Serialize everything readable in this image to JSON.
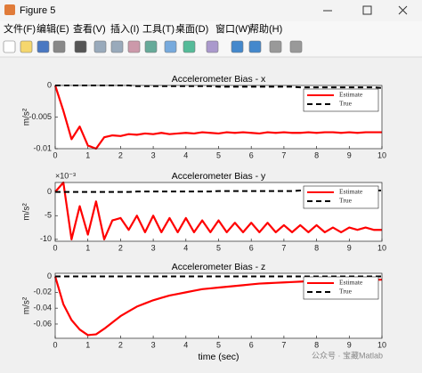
{
  "window": {
    "title": "Figure 5",
    "menu": [
      "文件(F)",
      "编辑(E)",
      "查看(V)",
      "插入(I)",
      "工具(T)",
      "桌面(D)",
      "窗口(W)",
      "帮助(H)"
    ]
  },
  "watermark": "公众号 · 宝藏Matlab",
  "chart_data": [
    {
      "type": "line",
      "title": "Accelerometer Bias - x",
      "ylabel": "m/s²",
      "x": [
        0,
        0.25,
        0.5,
        0.75,
        1,
        1.25,
        1.5,
        1.75,
        2,
        2.25,
        2.5,
        2.75,
        3,
        3.25,
        3.5,
        3.75,
        4,
        4.25,
        4.5,
        4.75,
        5,
        5.25,
        5.5,
        5.75,
        6,
        6.25,
        6.5,
        6.75,
        7,
        7.25,
        7.5,
        7.75,
        8,
        8.25,
        8.5,
        8.75,
        9,
        9.25,
        9.5,
        9.75,
        10
      ],
      "xlim": [
        0,
        10
      ],
      "xticks": [
        0,
        1,
        2,
        3,
        4,
        5,
        6,
        7,
        8,
        9,
        10
      ],
      "ylim": [
        -0.01,
        0
      ],
      "yticks": [
        -0.01,
        -0.005,
        0
      ],
      "legend": "upper right",
      "series": [
        {
          "name": "Estimate",
          "color": "#ff0000",
          "style": "solid",
          "values": [
            0,
            -0.004,
            -0.0085,
            -0.0065,
            -0.0095,
            -0.01,
            -0.0082,
            -0.0079,
            -0.008,
            -0.0077,
            -0.0078,
            -0.0076,
            -0.0077,
            -0.0075,
            -0.0077,
            -0.0076,
            -0.0075,
            -0.0076,
            -0.0074,
            -0.0075,
            -0.0076,
            -0.0074,
            -0.0075,
            -0.0074,
            -0.0075,
            -0.0076,
            -0.0074,
            -0.0075,
            -0.0074,
            -0.0075,
            -0.0075,
            -0.0074,
            -0.0075,
            -0.0074,
            -0.0074,
            -0.0075,
            -0.0074,
            -0.0075,
            -0.0074,
            -0.0074,
            -0.0074
          ]
        },
        {
          "name": "True",
          "color": "#000000",
          "style": "dashed",
          "values": [
            0,
            0,
            0,
            0,
            0,
            0,
            0,
            0,
            0,
            0,
            -0.0001,
            -0.0001,
            -0.0001,
            -0.0001,
            -0.0001,
            -0.0001,
            -0.0001,
            -0.0001,
            -0.0001,
            -0.0001,
            -0.0002,
            -0.0002,
            -0.0002,
            -0.0002,
            -0.0002,
            -0.0002,
            -0.0002,
            -0.0002,
            -0.0002,
            -0.0002,
            -0.0003,
            -0.0003,
            -0.0003,
            -0.0003,
            -0.0003,
            -0.0003,
            -0.0003,
            -0.0003,
            -0.0003,
            -0.0003,
            -0.0004
          ]
        }
      ]
    },
    {
      "type": "line",
      "title": "Accelerometer Bias - y",
      "ylabel": "m/s²",
      "yexponent": "×10⁻³",
      "x": [
        0,
        0.25,
        0.5,
        0.75,
        1,
        1.25,
        1.5,
        1.75,
        2,
        2.25,
        2.5,
        2.75,
        3,
        3.25,
        3.5,
        3.75,
        4,
        4.25,
        4.5,
        4.75,
        5,
        5.25,
        5.5,
        5.75,
        6,
        6.25,
        6.5,
        6.75,
        7,
        7.25,
        7.5,
        7.75,
        8,
        8.25,
        8.5,
        8.75,
        9,
        9.25,
        9.5,
        9.75,
        10
      ],
      "xlim": [
        0,
        10
      ],
      "xticks": [
        0,
        1,
        2,
        3,
        4,
        5,
        6,
        7,
        8,
        9,
        10
      ],
      "ylim": [
        -10.4,
        2
      ],
      "yticks": [
        -10,
        -5,
        0
      ],
      "legend": "upper right",
      "series": [
        {
          "name": "Estimate",
          "color": "#ff0000",
          "style": "solid",
          "values": [
            0,
            2,
            -10,
            -3,
            -9,
            -2,
            -10,
            -6,
            -5.5,
            -8,
            -5,
            -8.5,
            -5,
            -8.5,
            -5.5,
            -8.5,
            -5.5,
            -8.5,
            -6,
            -8.5,
            -6,
            -8.5,
            -6.5,
            -8.5,
            -6.5,
            -8.5,
            -6.5,
            -8.5,
            -7,
            -8.5,
            -7,
            -8.5,
            -7,
            -8.5,
            -7.5,
            -8.5,
            -7.5,
            -8,
            -7.5,
            -8,
            -8
          ]
        },
        {
          "name": "True",
          "color": "#000000",
          "style": "dashed",
          "values": [
            0,
            0,
            0,
            0,
            0,
            0,
            0,
            0,
            0,
            0,
            0.1,
            0.1,
            0.1,
            0.1,
            0.1,
            0.1,
            0.1,
            0.1,
            0.1,
            0.1,
            0.2,
            0.2,
            0.2,
            0.2,
            0.2,
            0.2,
            0.2,
            0.2,
            0.2,
            0.2,
            0.3,
            0.3,
            0.3,
            0.3,
            0.3,
            0.3,
            0.3,
            0.3,
            0.3,
            0.3,
            0.3
          ]
        }
      ]
    },
    {
      "type": "line",
      "title": "Accelerometer Bias - z",
      "ylabel": "m/s²",
      "xlabel": "time (sec)",
      "x": [
        0,
        0.25,
        0.5,
        0.75,
        1,
        1.25,
        1.5,
        1.75,
        2,
        2.25,
        2.5,
        2.75,
        3,
        3.25,
        3.5,
        3.75,
        4,
        4.25,
        4.5,
        4.75,
        5,
        5.25,
        5.5,
        5.75,
        6,
        6.25,
        6.5,
        6.75,
        7,
        7.25,
        7.5,
        7.75,
        8,
        8.25,
        8.5,
        8.75,
        9,
        9.25,
        9.5,
        9.75,
        10
      ],
      "xlim": [
        0,
        10
      ],
      "xticks": [
        0,
        1,
        2,
        3,
        4,
        5,
        6,
        7,
        8,
        9,
        10
      ],
      "ylim": [
        -0.078,
        0.004
      ],
      "yticks": [
        -0.06,
        -0.04,
        -0.02,
        0
      ],
      "legend": "upper right",
      "series": [
        {
          "name": "Estimate",
          "color": "#ff0000",
          "style": "solid",
          "values": [
            0,
            -0.035,
            -0.055,
            -0.067,
            -0.074,
            -0.073,
            -0.066,
            -0.058,
            -0.05,
            -0.044,
            -0.038,
            -0.034,
            -0.03,
            -0.027,
            -0.024,
            -0.022,
            -0.02,
            -0.018,
            -0.016,
            -0.015,
            -0.014,
            -0.013,
            -0.012,
            -0.011,
            -0.01,
            -0.009,
            -0.0085,
            -0.008,
            -0.0075,
            -0.007,
            -0.0065,
            -0.006,
            -0.0058,
            -0.0055,
            -0.0052,
            -0.005,
            -0.0048,
            -0.0046,
            -0.0044,
            -0.0042,
            -0.004
          ]
        },
        {
          "name": "True",
          "color": "#000000",
          "style": "dashed",
          "values": [
            0,
            0,
            0,
            0,
            0,
            0,
            0,
            0,
            0,
            0,
            0,
            0,
            0,
            0,
            0,
            0,
            0,
            0,
            0,
            0,
            0,
            0,
            0,
            0,
            0,
            0,
            0,
            0,
            0,
            0,
            0,
            0,
            0,
            0,
            0,
            0,
            0,
            0,
            0,
            0,
            0
          ]
        }
      ]
    }
  ]
}
